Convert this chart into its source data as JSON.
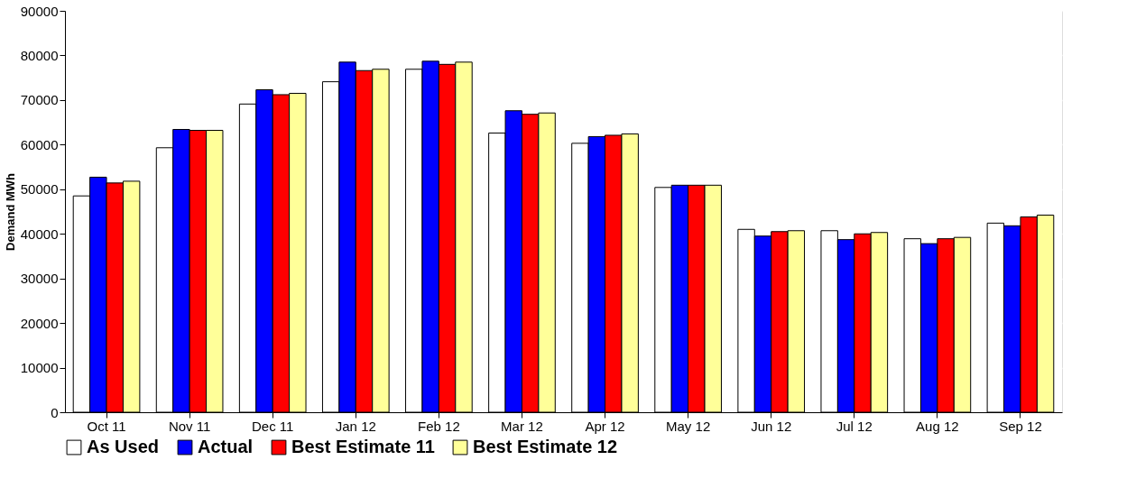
{
  "chart_data": {
    "type": "bar",
    "ylabel": "Demand MWh",
    "categories": [
      "Oct 11",
      "Nov 11",
      "Dec 11",
      "Jan 12",
      "Feb 12",
      "Mar 12",
      "Apr 12",
      "May 12",
      "Jun 12",
      "Jul 12",
      "Aug 12",
      "Sep 12"
    ],
    "series": [
      {
        "name": "As Used",
        "color": "#ffffff",
        "values": [
          48500,
          59300,
          69100,
          74100,
          76900,
          62600,
          60300,
          50400,
          41000,
          40700,
          38900,
          42400
        ]
      },
      {
        "name": "Actual",
        "color": "#0000ff",
        "values": [
          52700,
          63400,
          72300,
          78500,
          78700,
          67600,
          61800,
          50900,
          39500,
          38700,
          37800,
          41800
        ]
      },
      {
        "name": "Best Estimate 11",
        "color": "#ff0000",
        "values": [
          51400,
          63200,
          71200,
          76600,
          78000,
          66800,
          62100,
          50900,
          40500,
          40000,
          38900,
          43800
        ]
      },
      {
        "name": "Best Estimate 12",
        "color": "#ffff99",
        "values": [
          51800,
          63200,
          71500,
          76900,
          78500,
          67100,
          62400,
          50900,
          40700,
          40300,
          39200,
          44200
        ]
      }
    ],
    "ylim": [
      0,
      90000
    ],
    "yticks": [
      0,
      10000,
      20000,
      30000,
      40000,
      50000,
      60000,
      70000,
      80000,
      90000
    ],
    "grid": "y",
    "legend": "bottom"
  }
}
